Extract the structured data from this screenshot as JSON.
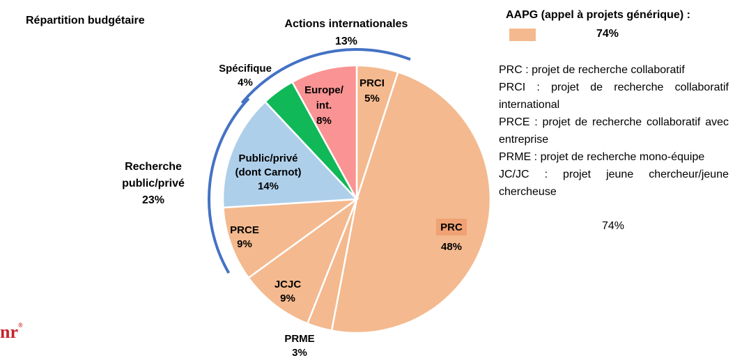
{
  "title": "Répartition budgétaire",
  "logo_text": "nr",
  "logo_mark": "®",
  "legend": {
    "title": "AAPG (appel à projets générique) :",
    "value": "74%",
    "swatch_color": "#f4b98e"
  },
  "definitions": [
    "PRC : projet de recherche collaboratif",
    "PRCI : projet de recherche collaboratif international",
    "PRCE : projet de recherche collaboratif avec entreprise",
    "PRME : projet de recherche mono-équipe",
    "JC/JC : projet jeune chercheur/jeune chercheuse"
  ],
  "definitions_total": "74%",
  "chart_data": {
    "type": "pie",
    "slices": [
      {
        "label": "PRCI",
        "value": 5,
        "value_label": "5%",
        "color": "#f4b98e"
      },
      {
        "label": "PRC",
        "value": 48,
        "value_label": "48%",
        "color": "#f4b98e"
      },
      {
        "label": "PRME",
        "value": 3,
        "value_label": "3%",
        "color": "#f4b98e"
      },
      {
        "label": "JCJC",
        "value": 9,
        "value_label": "9%",
        "color": "#f4b98e"
      },
      {
        "label": "PRCE",
        "value": 9,
        "value_label": "9%",
        "color": "#f4b98e"
      },
      {
        "label": "Public/privé (dont Carnot)",
        "value": 14,
        "value_label": "14%",
        "color": "#aecfea"
      },
      {
        "label": "Spécifique",
        "value": 4,
        "value_label": "4%",
        "color": "#10b858"
      },
      {
        "label": "Europe/ int.",
        "value": 8,
        "value_label": "8%",
        "color": "#fa9393"
      }
    ],
    "groups": [
      {
        "label": "Actions internationales",
        "value_label": "13%",
        "color": "#4472c4"
      },
      {
        "label": "Recherche public/privé",
        "value_label": "23%",
        "color": "#4472c4"
      }
    ]
  }
}
